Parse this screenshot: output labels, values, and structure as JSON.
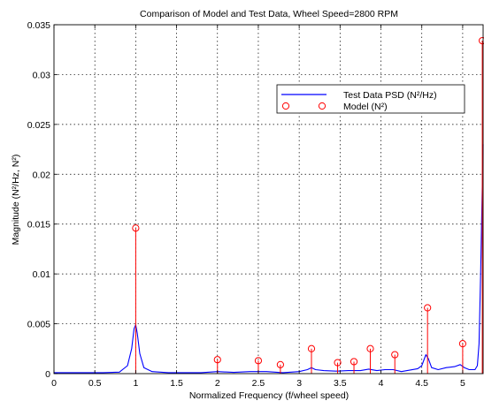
{
  "chart_data": {
    "type": "line",
    "title": "Comparison of Model and Test Data, Wheel Speed=2800 RPM",
    "xlabel": "Normalized Frequency (f/wheel speed)",
    "ylabel": "Magnitude (N²/Hz, N²)",
    "xlim": [
      0,
      5.25
    ],
    "ylim": [
      0,
      0.035
    ],
    "grid": true,
    "legend_position": "top-right",
    "x_ticks": [
      "0",
      "0.5",
      "1",
      "1.5",
      "2",
      "2.5",
      "3",
      "3.5",
      "4",
      "4.5",
      "5"
    ],
    "y_ticks": [
      "0",
      "0.005",
      "0.01",
      "0.015",
      "0.02",
      "0.025",
      "0.03",
      "0.035"
    ],
    "colors": {
      "psd": "#0000ff",
      "model": "#ff0000"
    },
    "series": [
      {
        "name": "Test Data PSD (N²/Hz)",
        "style": "line",
        "x": [
          0,
          0.3,
          0.6,
          0.8,
          0.9,
          0.95,
          0.98,
          1.0,
          1.02,
          1.05,
          1.1,
          1.2,
          1.4,
          1.6,
          1.8,
          2.0,
          2.2,
          2.4,
          2.6,
          2.8,
          3.0,
          3.1,
          3.15,
          3.2,
          3.3,
          3.45,
          3.6,
          3.75,
          3.85,
          3.95,
          4.05,
          4.15,
          4.25,
          4.35,
          4.45,
          4.5,
          4.55,
          4.58,
          4.62,
          4.7,
          4.8,
          4.9,
          4.97,
          5.02,
          5.08,
          5.15,
          5.18,
          5.2,
          5.22,
          5.24,
          5.25
        ],
        "values": [
          0.0001,
          0.0001,
          0.0001,
          0.00015,
          0.0008,
          0.0025,
          0.0045,
          0.0049,
          0.004,
          0.002,
          0.0006,
          0.0002,
          0.0001,
          0.0001,
          0.0001,
          0.0002,
          0.00012,
          0.0002,
          0.0002,
          0.0001,
          0.0002,
          0.0004,
          0.0006,
          0.0004,
          0.0003,
          0.00025,
          0.0003,
          0.0003,
          0.00045,
          0.0003,
          0.0004,
          0.0004,
          0.0002,
          0.00035,
          0.0005,
          0.0008,
          0.0019,
          0.0015,
          0.0006,
          0.0004,
          0.0006,
          0.0007,
          0.0009,
          0.0006,
          0.0004,
          0.0004,
          0.0008,
          0.003,
          0.01,
          0.019,
          0.023
        ]
      },
      {
        "name": "Model (N²)",
        "style": "stem",
        "x": [
          1.0,
          2.0,
          2.5,
          2.77,
          3.15,
          3.47,
          3.67,
          3.87,
          4.17,
          4.57,
          5.0,
          5.24
        ],
        "values": [
          0.0146,
          0.0014,
          0.0013,
          0.0009,
          0.0025,
          0.0011,
          0.0012,
          0.0025,
          0.0019,
          0.0066,
          0.003,
          0.0334
        ]
      }
    ]
  }
}
